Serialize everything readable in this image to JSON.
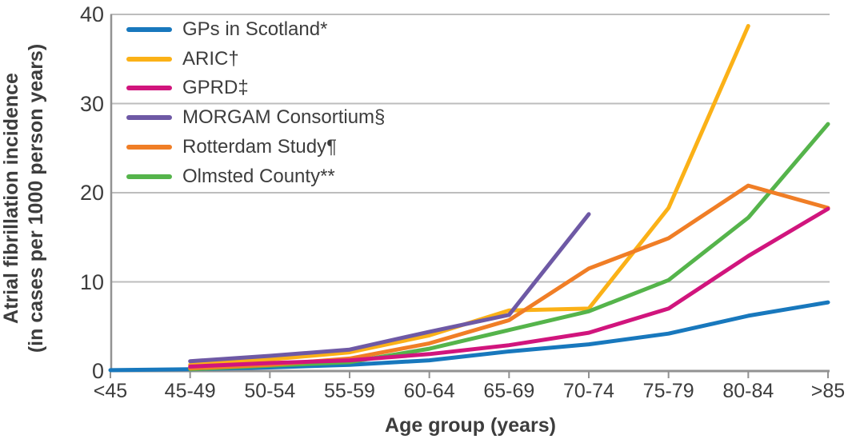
{
  "chart_data": {
    "type": "line",
    "title": "",
    "xlabel": "Age group (years)",
    "ylabel": "Atrial fibrillation incidence (in cases per 1000 person years)",
    "ylabel_lines": [
      "Atrial fibrillation incidence",
      "(in cases per 1000 person years)"
    ],
    "categories": [
      "<45",
      "45-49",
      "50-54",
      "55-59",
      "60-64",
      "65-69",
      "70-74",
      "75-79",
      "80-84",
      ">85"
    ],
    "yticks": [
      0,
      10,
      20,
      30,
      40
    ],
    "ylim": [
      0,
      40
    ],
    "grid": "horizontal-only",
    "legend_position": "inside-top-left",
    "series": [
      {
        "name": "GPs in Scotland*",
        "color": "#1878bd",
        "values": [
          0.1,
          0.2,
          0.4,
          0.7,
          1.2,
          2.2,
          3.0,
          4.2,
          6.2,
          7.7
        ]
      },
      {
        "name": "ARIC†",
        "color": "#fbb117",
        "values": [
          null,
          0.7,
          1.3,
          2.1,
          4.0,
          6.8,
          7.0,
          18.3,
          38.7,
          null
        ]
      },
      {
        "name": "GPRD‡",
        "color": "#d1157d",
        "values": [
          null,
          0.5,
          0.9,
          1.2,
          1.9,
          2.9,
          4.3,
          7.0,
          12.9,
          18.2
        ]
      },
      {
        "name": "MORGAM Consortium§",
        "color": "#6e59a5",
        "values": [
          null,
          1.1,
          1.7,
          2.4,
          4.4,
          6.3,
          17.6,
          null,
          null,
          null
        ]
      },
      {
        "name": "Rotterdam Study¶",
        "color": "#f07e26",
        "values": [
          null,
          0.3,
          0.7,
          1.4,
          3.1,
          5.7,
          11.5,
          14.9,
          20.8,
          18.3
        ]
      },
      {
        "name": "Olmsted County**",
        "color": "#55b44b",
        "values": [
          null,
          0.2,
          0.6,
          1.0,
          2.5,
          4.6,
          6.7,
          10.2,
          17.2,
          27.7
        ]
      }
    ],
    "draw_order": [
      0,
      1,
      5,
      4,
      2,
      3
    ]
  },
  "colors": {
    "text": "#3d3d3d",
    "grid": "#bdbdbd",
    "axis": "#929292",
    "background": "#ffffff"
  }
}
